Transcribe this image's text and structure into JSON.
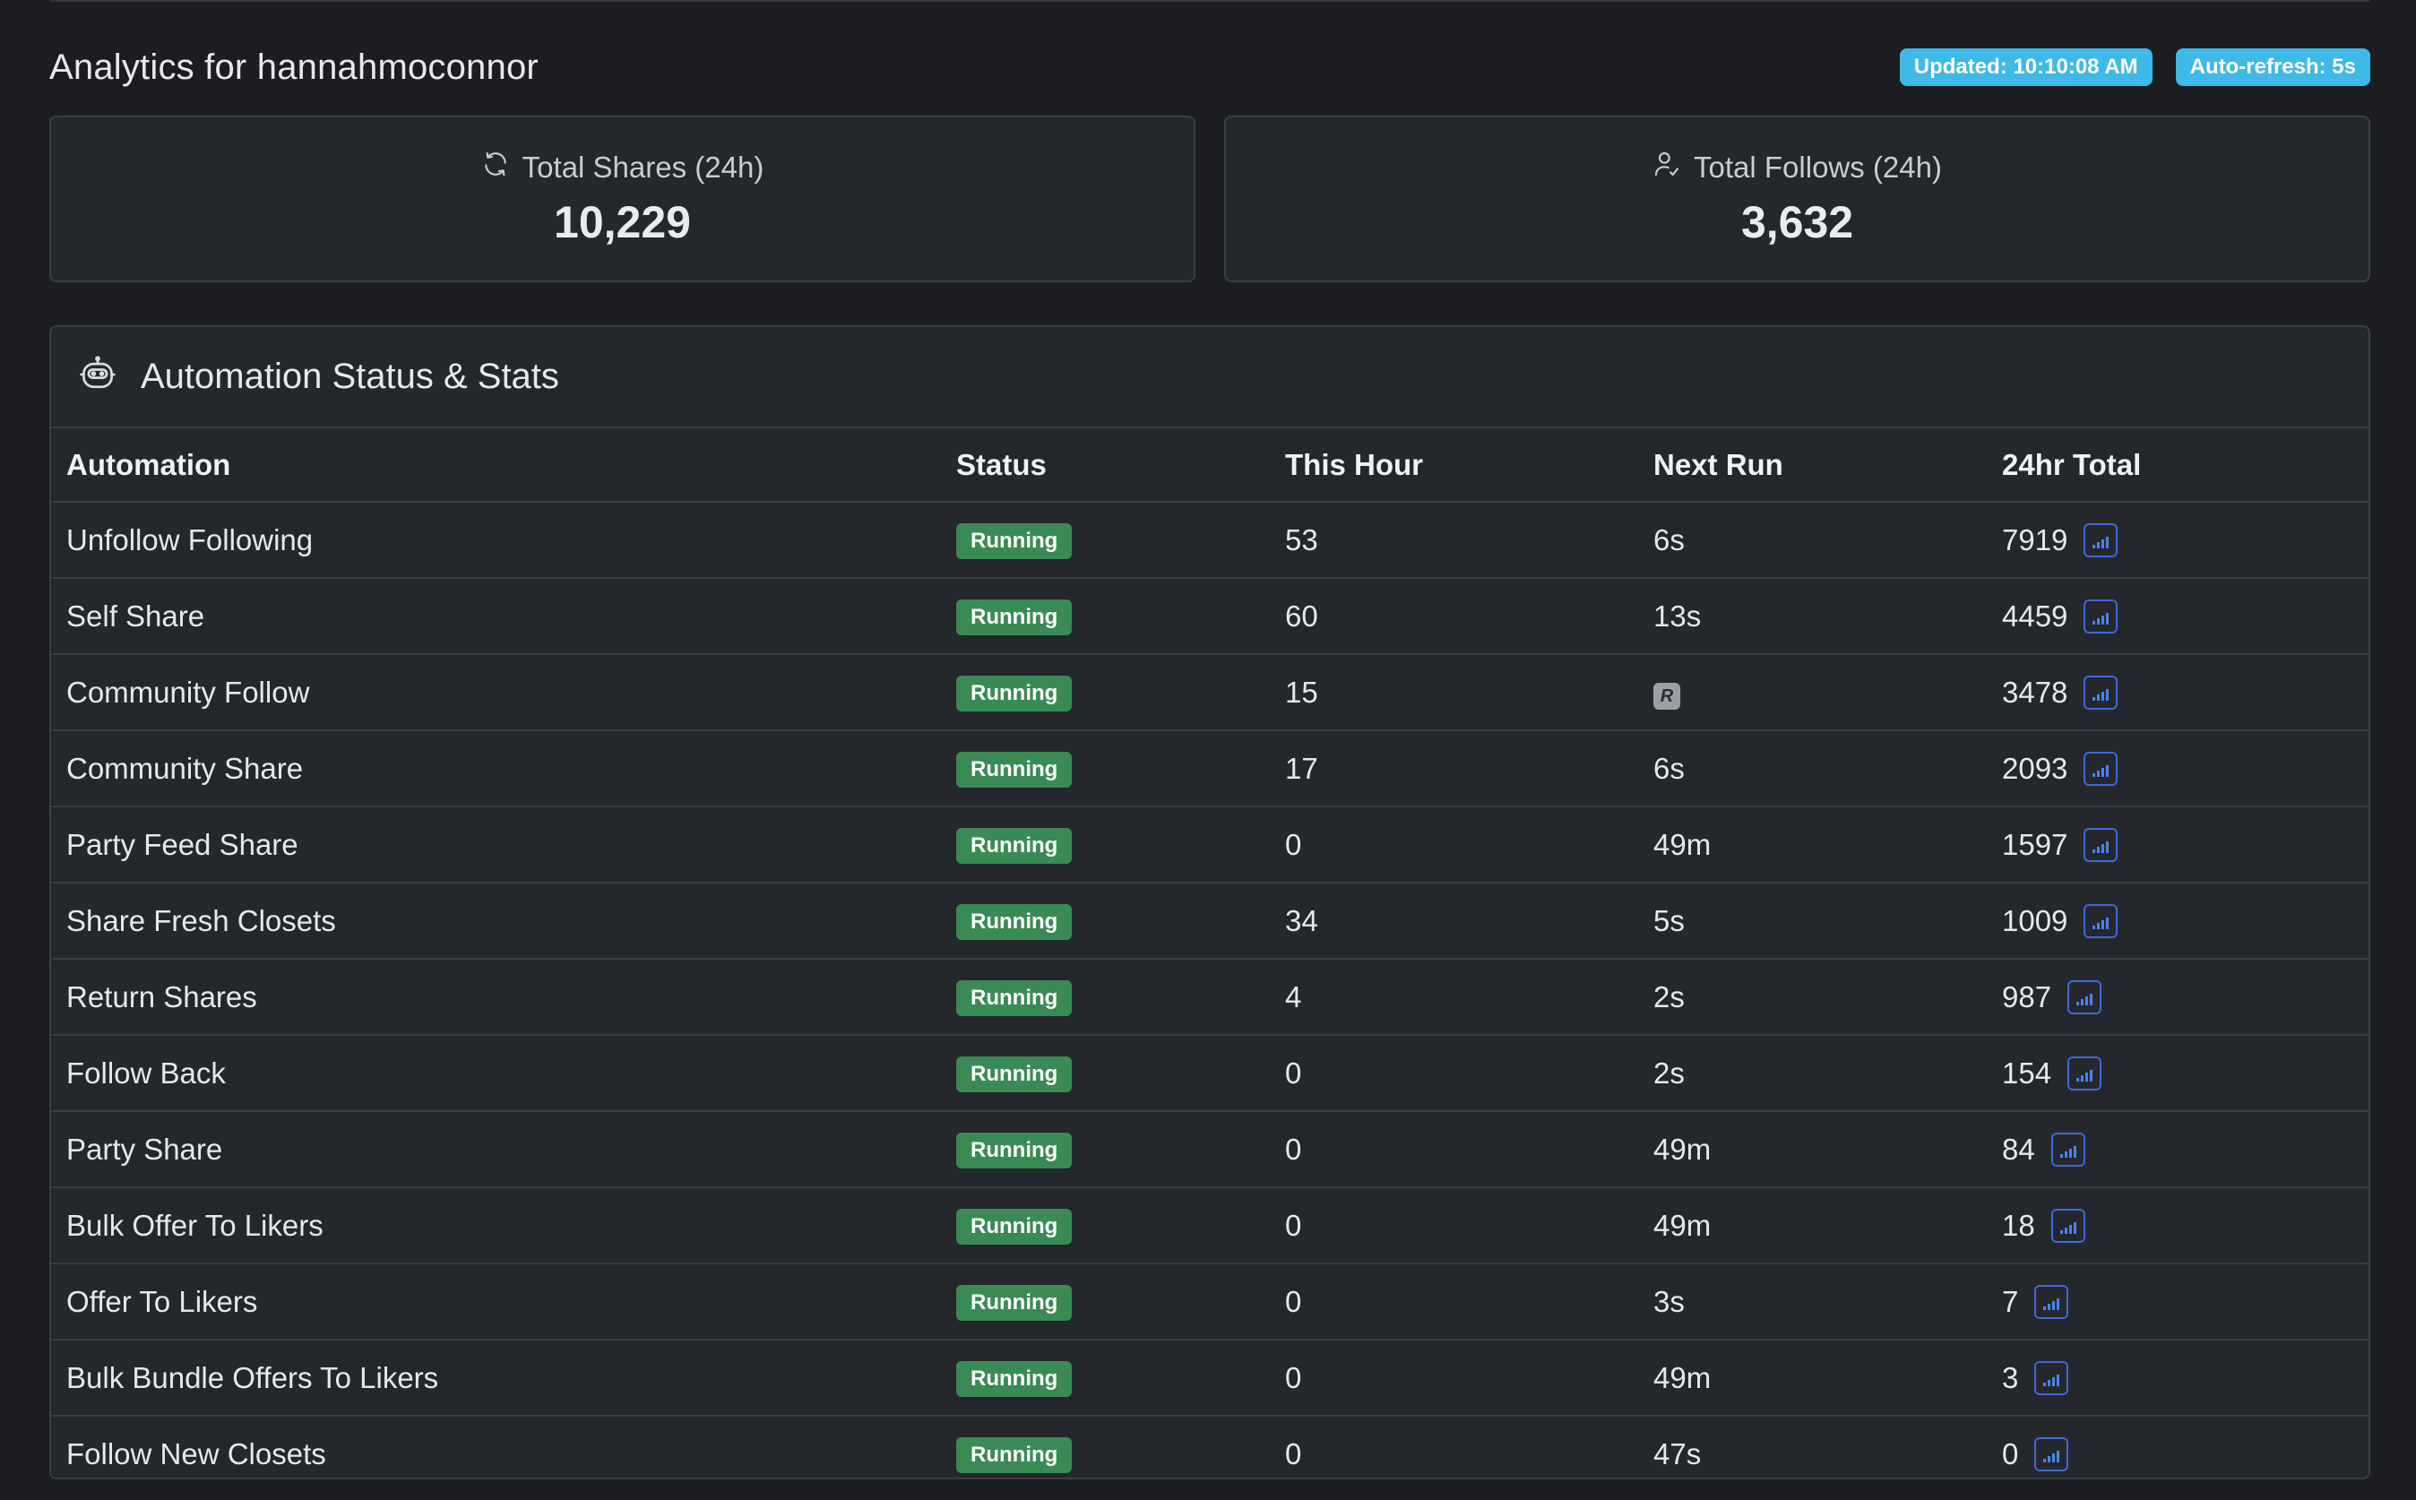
{
  "header": {
    "title": "Analytics for hannahmoconnor",
    "updated_badge": "Updated: 10:10:08 AM",
    "refresh_badge": "Auto-refresh: 5s"
  },
  "cards": [
    {
      "label": "Total Shares (24h)",
      "value": "10,229",
      "icon": "refresh-icon"
    },
    {
      "label": "Total Follows (24h)",
      "value": "3,632",
      "icon": "user-check-icon"
    }
  ],
  "panel": {
    "title": "Automation Status & Stats",
    "icon": "robot-icon"
  },
  "table": {
    "columns": [
      "Automation",
      "Status",
      "This Hour",
      "Next Run",
      "24hr Total"
    ],
    "rows": [
      {
        "name": "Unfollow Following",
        "status": "Running",
        "hour": "53",
        "next": "6s",
        "total": "7919"
      },
      {
        "name": "Self Share",
        "status": "Running",
        "hour": "60",
        "next": "13s",
        "total": "4459"
      },
      {
        "name": "Community Follow",
        "status": "Running",
        "hour": "15",
        "next": "R",
        "total": "3478"
      },
      {
        "name": "Community Share",
        "status": "Running",
        "hour": "17",
        "next": "6s",
        "total": "2093"
      },
      {
        "name": "Party Feed Share",
        "status": "Running",
        "hour": "0",
        "next": "49m",
        "total": "1597"
      },
      {
        "name": "Share Fresh Closets",
        "status": "Running",
        "hour": "34",
        "next": "5s",
        "total": "1009"
      },
      {
        "name": "Return Shares",
        "status": "Running",
        "hour": "4",
        "next": "2s",
        "total": "987"
      },
      {
        "name": "Follow Back",
        "status": "Running",
        "hour": "0",
        "next": "2s",
        "total": "154"
      },
      {
        "name": "Party Share",
        "status": "Running",
        "hour": "0",
        "next": "49m",
        "total": "84"
      },
      {
        "name": "Bulk Offer To Likers",
        "status": "Running",
        "hour": "0",
        "next": "49m",
        "total": "18"
      },
      {
        "name": "Offer To Likers",
        "status": "Running",
        "hour": "0",
        "next": "3s",
        "total": "7"
      },
      {
        "name": "Bulk Bundle Offers To Likers",
        "status": "Running",
        "hour": "0",
        "next": "49m",
        "total": "3"
      },
      {
        "name": "Follow New Closets",
        "status": "Running",
        "hour": "0",
        "next": "47s",
        "total": "0"
      }
    ]
  },
  "colors": {
    "background": "#1b1d21",
    "panel": "#24272c",
    "badge_info": "#3fb9e8",
    "status_running": "#3a8a55",
    "chart_button": "#3a6bd6"
  }
}
